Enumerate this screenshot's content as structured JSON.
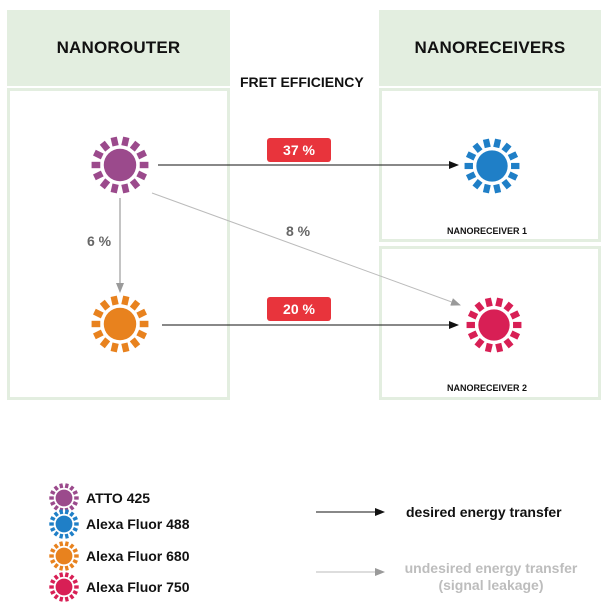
{
  "header": {
    "router_title": "NANOROUTER",
    "receivers_title": "NANORECEIVERS",
    "fret_title": "FRET EFFICIENCY"
  },
  "transfers": {
    "atto_to_r1": "37 %",
    "alexa680_to_r2": "20 %",
    "atto_to_alexa680": "6 %",
    "atto_to_r2": "8 %"
  },
  "receivers": {
    "r1_label": "NANORECEIVER 1",
    "r2_label": "NANORECEIVER 2"
  },
  "legend": {
    "dyes": [
      {
        "name": "ATTO 425",
        "color": "#9b4a8c"
      },
      {
        "name": "Alexa Fluor 488",
        "color": "#1f7fc7"
      },
      {
        "name": "Alexa Fluor 680",
        "color": "#e8821e"
      },
      {
        "name": "Alexa Fluor 750",
        "color": "#d81f55"
      }
    ],
    "desired": "desired energy transfer",
    "undesired_line1": "undesired energy transfer",
    "undesired_line2": "(signal leakage)"
  },
  "colors": {
    "header_bg": "#e3eee0",
    "badge": "#e8343c",
    "atto": "#9b4a8c",
    "alexa488": "#1f7fc7",
    "alexa680": "#e8821e",
    "alexa750": "#d81f55"
  }
}
